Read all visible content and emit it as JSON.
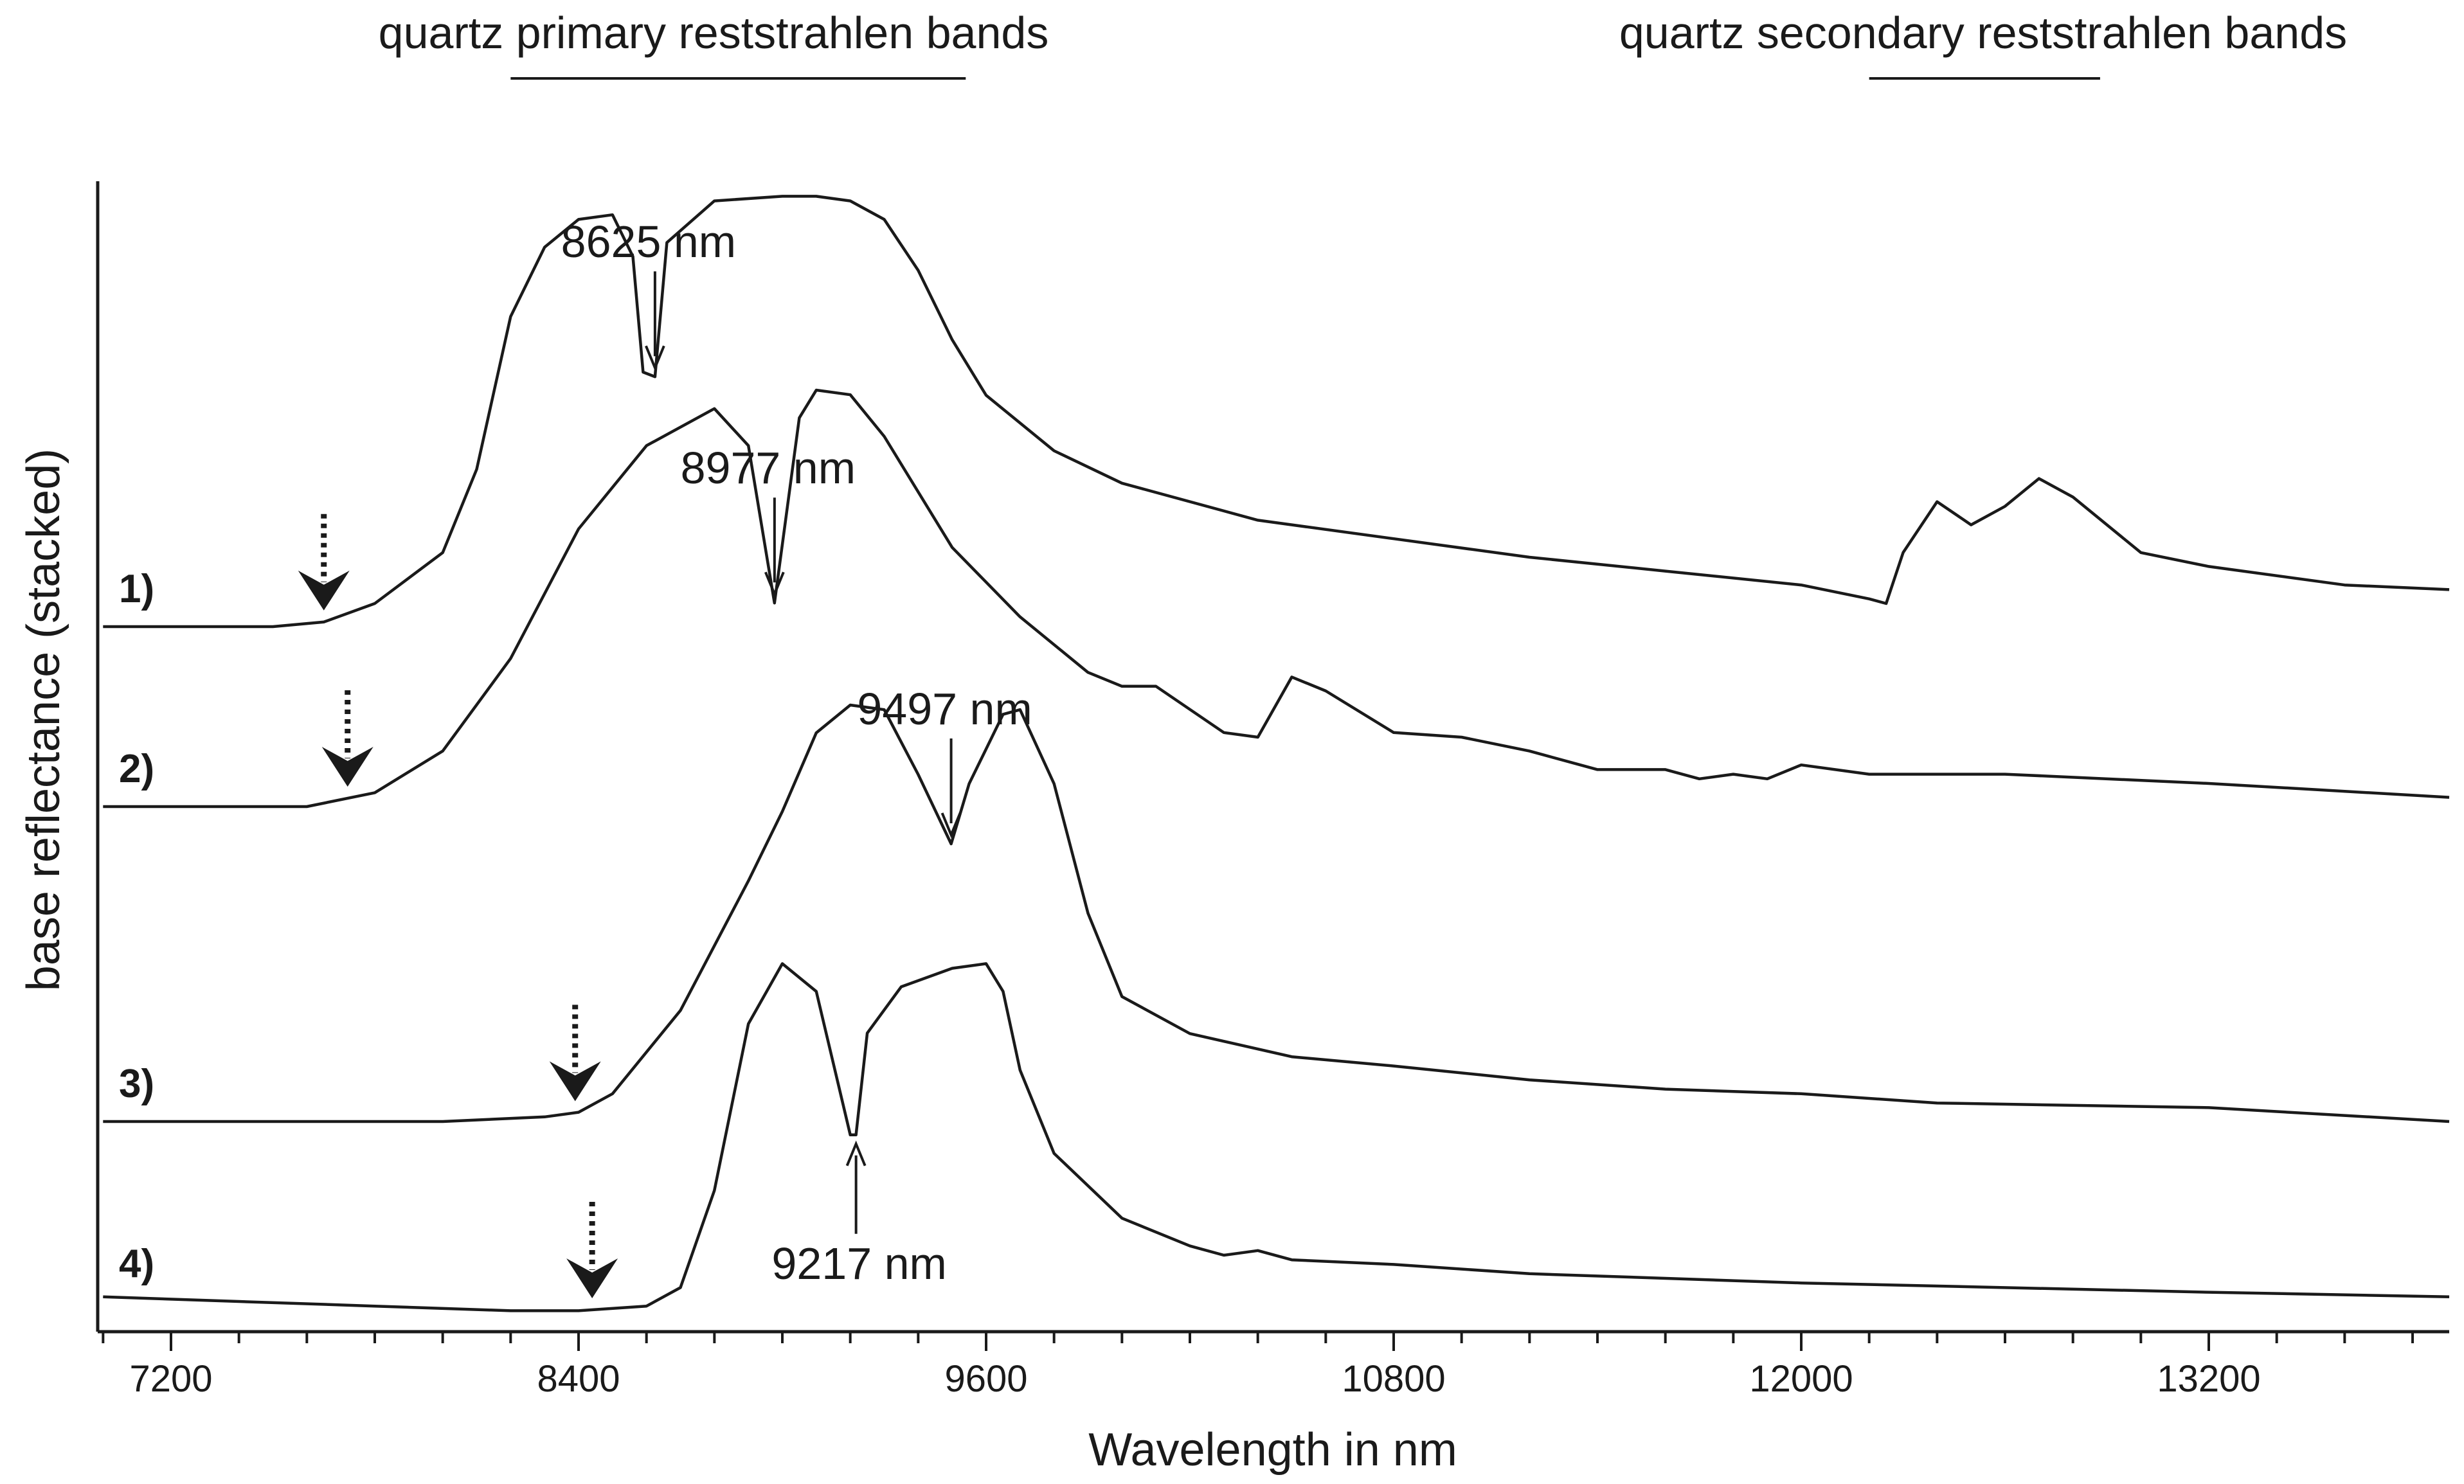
{
  "chart_data": {
    "type": "line",
    "xlabel": "Wavelength in nm",
    "ylabel": "base reflectance  (stacked)",
    "xlim": [
      7000,
      14000
    ],
    "x_ticks": [
      7200,
      8400,
      9600,
      10800,
      12000,
      13200
    ],
    "minor_tick_step": 200,
    "grid": false,
    "band_titles": [
      {
        "text": "quartz primary reststrahlen bands",
        "range": [
          8200,
          9540
        ]
      },
      {
        "text": "quartz secondary reststrahlen bands",
        "range": [
          12200,
          12880
        ]
      }
    ],
    "series": [
      {
        "name": "1)",
        "feature_onset_nm": 7650,
        "points": [
          [
            7000,
            0
          ],
          [
            7500,
            0
          ],
          [
            7650,
            0.1
          ],
          [
            7800,
            0.5
          ],
          [
            8000,
            1.6
          ],
          [
            8100,
            3.4
          ],
          [
            8200,
            6.7
          ],
          [
            8300,
            8.2
          ],
          [
            8400,
            8.8
          ],
          [
            8500,
            8.9
          ],
          [
            8560,
            8.0
          ],
          [
            8590,
            5.5
          ],
          [
            8625,
            5.4
          ],
          [
            8660,
            8.3
          ],
          [
            8800,
            9.2
          ],
          [
            9000,
            9.3
          ],
          [
            9100,
            9.3
          ],
          [
            9200,
            9.2
          ],
          [
            9300,
            8.8
          ],
          [
            9400,
            7.7
          ],
          [
            9500,
            6.2
          ],
          [
            9600,
            5.0
          ],
          [
            9800,
            3.8
          ],
          [
            10000,
            3.1
          ],
          [
            10400,
            2.3
          ],
          [
            10800,
            1.9
          ],
          [
            11200,
            1.5
          ],
          [
            11600,
            1.2
          ],
          [
            12000,
            0.9
          ],
          [
            12200,
            0.6
          ],
          [
            12250,
            0.5
          ],
          [
            12300,
            1.6
          ],
          [
            12400,
            2.7
          ],
          [
            12500,
            2.2
          ],
          [
            12600,
            2.6
          ],
          [
            12700,
            3.2
          ],
          [
            12800,
            2.8
          ],
          [
            13000,
            1.6
          ],
          [
            13200,
            1.3
          ],
          [
            13600,
            0.9
          ],
          [
            14000,
            0.8
          ]
        ]
      },
      {
        "name": "2)",
        "feature_onset_nm": 7720,
        "points": [
          [
            7000,
            0
          ],
          [
            7600,
            0
          ],
          [
            7800,
            0.3
          ],
          [
            8000,
            1.2
          ],
          [
            8200,
            3.2
          ],
          [
            8400,
            6.0
          ],
          [
            8600,
            7.8
          ],
          [
            8800,
            8.6
          ],
          [
            8900,
            7.8
          ],
          [
            8977,
            4.4
          ],
          [
            9050,
            8.4
          ],
          [
            9100,
            9.0
          ],
          [
            9200,
            8.9
          ],
          [
            9300,
            8.0
          ],
          [
            9500,
            5.6
          ],
          [
            9700,
            4.1
          ],
          [
            9900,
            2.9
          ],
          [
            10000,
            2.6
          ],
          [
            10100,
            2.6
          ],
          [
            10200,
            2.1
          ],
          [
            10300,
            1.6
          ],
          [
            10400,
            1.5
          ],
          [
            10500,
            2.8
          ],
          [
            10600,
            2.5
          ],
          [
            10800,
            1.6
          ],
          [
            11000,
            1.5
          ],
          [
            11200,
            1.2
          ],
          [
            11400,
            0.8
          ],
          [
            11600,
            0.8
          ],
          [
            11700,
            0.6
          ],
          [
            11800,
            0.7
          ],
          [
            11900,
            0.6
          ],
          [
            12000,
            0.9
          ],
          [
            12200,
            0.7
          ],
          [
            12600,
            0.7
          ],
          [
            13200,
            0.5
          ],
          [
            14000,
            0.2
          ]
        ]
      },
      {
        "name": "3)",
        "feature_onset_nm": 8390,
        "points": [
          [
            7000,
            0
          ],
          [
            7500,
            0
          ],
          [
            8000,
            0
          ],
          [
            8300,
            0.1
          ],
          [
            8400,
            0.2
          ],
          [
            8500,
            0.6
          ],
          [
            8700,
            2.4
          ],
          [
            8900,
            5.2
          ],
          [
            9000,
            6.7
          ],
          [
            9100,
            8.4
          ],
          [
            9200,
            9.0
          ],
          [
            9300,
            8.9
          ],
          [
            9400,
            7.5
          ],
          [
            9497,
            6.0
          ],
          [
            9550,
            7.3
          ],
          [
            9650,
            8.8
          ],
          [
            9700,
            8.9
          ],
          [
            9800,
            7.3
          ],
          [
            9900,
            4.5
          ],
          [
            10000,
            2.7
          ],
          [
            10200,
            1.9
          ],
          [
            10500,
            1.4
          ],
          [
            10800,
            1.2
          ],
          [
            11200,
            0.9
          ],
          [
            11600,
            0.7
          ],
          [
            12000,
            0.6
          ],
          [
            12400,
            0.4
          ],
          [
            13200,
            0.3
          ],
          [
            14000,
            0
          ]
        ]
      },
      {
        "name": "4)",
        "feature_onset_nm": 8440,
        "points": [
          [
            7000,
            0.1
          ],
          [
            7400,
            0
          ],
          [
            7800,
            -0.1
          ],
          [
            8200,
            -0.2
          ],
          [
            8400,
            -0.2
          ],
          [
            8600,
            -0.1
          ],
          [
            8700,
            0.3
          ],
          [
            8800,
            2.4
          ],
          [
            8900,
            6.0
          ],
          [
            9000,
            7.3
          ],
          [
            9100,
            6.7
          ],
          [
            9200,
            3.6
          ],
          [
            9217,
            3.6
          ],
          [
            9250,
            5.8
          ],
          [
            9350,
            6.8
          ],
          [
            9500,
            7.2
          ],
          [
            9600,
            7.3
          ],
          [
            9650,
            6.7
          ],
          [
            9700,
            5.0
          ],
          [
            9800,
            3.2
          ],
          [
            10000,
            1.8
          ],
          [
            10200,
            1.2
          ],
          [
            10300,
            1.0
          ],
          [
            10400,
            1.1
          ],
          [
            10500,
            0.9
          ],
          [
            10800,
            0.8
          ],
          [
            11200,
            0.6
          ],
          [
            12000,
            0.4
          ],
          [
            13200,
            0.2
          ],
          [
            14000,
            0.1
          ]
        ]
      }
    ],
    "annotations": [
      {
        "text": "8625 nm",
        "x": 8625,
        "series": "1)",
        "direction": "down"
      },
      {
        "text": "8977 nm",
        "x": 8977,
        "series": "2)",
        "direction": "down"
      },
      {
        "text": "9497 nm",
        "x": 9497,
        "series": "3)",
        "direction": "down"
      },
      {
        "text": "9217 nm",
        "x": 9217,
        "series": "4)",
        "direction": "up"
      }
    ]
  }
}
